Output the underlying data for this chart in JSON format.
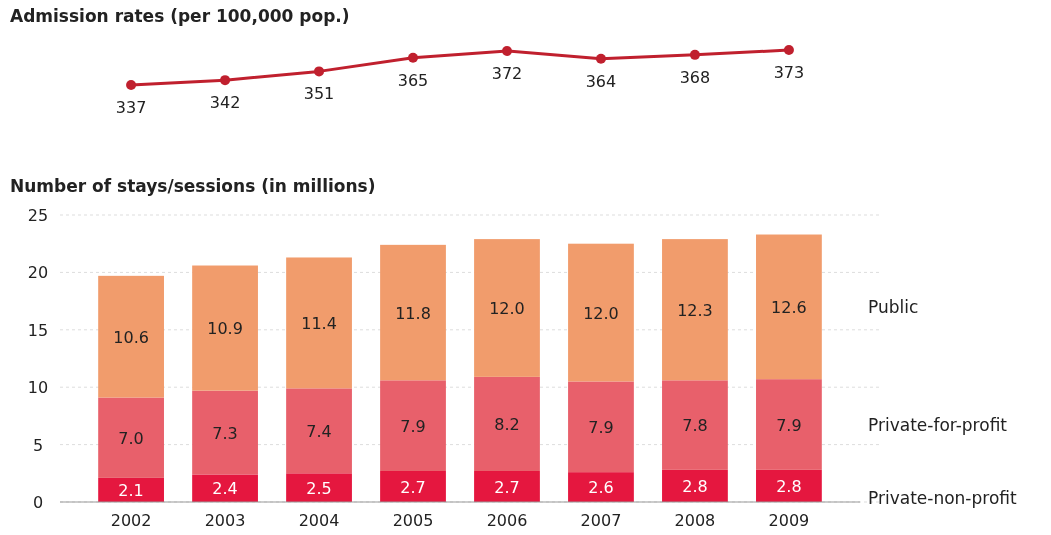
{
  "chart_data": [
    {
      "type": "line",
      "title": "Admission rates (per 100,000 pop.)",
      "categories": [
        null,
        null,
        null,
        null,
        null,
        null,
        null,
        null
      ],
      "series": [
        {
          "color": "#c0202e",
          "values": [
            337,
            342,
            351,
            365,
            372,
            364,
            368,
            373
          ]
        }
      ],
      "data_labels": true,
      "marker": "circle"
    },
    {
      "type": "bar",
      "title": "Number of stays/sessions (in millions)",
      "categories": [
        "2002",
        "2003",
        "2004",
        "2005",
        "2006",
        "2007",
        "2008",
        "2009"
      ],
      "stacked": true,
      "series": [
        {
          "name": "Private-non-profit",
          "color": "#e5173f",
          "values": [
            2.1,
            2.4,
            2.5,
            2.7,
            2.7,
            2.6,
            2.8,
            2.8
          ]
        },
        {
          "name": "Private-for-profit",
          "color": "#e8606b",
          "values": [
            7.0,
            7.3,
            7.4,
            7.9,
            8.2,
            7.9,
            7.8,
            7.9
          ],
          "value_labels": [
            "7.0",
            "7.3",
            "7.4",
            "7.9",
            "8.2",
            "7.9",
            "7.8",
            "7.9"
          ]
        },
        {
          "name": "Public",
          "color": "#f19c6c",
          "values": [
            10.6,
            10.9,
            11.4,
            11.8,
            12.0,
            12.0,
            12.3,
            12.6
          ],
          "value_labels": [
            "10.6",
            "10.9",
            "11.4",
            "11.8",
            "12.0",
            "12.0",
            "12.3",
            "12.6"
          ]
        }
      ],
      "ylim": [
        0,
        25
      ],
      "yticks": [
        0,
        5,
        10,
        15,
        20,
        25
      ],
      "grid": "y",
      "legend": "right",
      "data_labels": true
    }
  ]
}
